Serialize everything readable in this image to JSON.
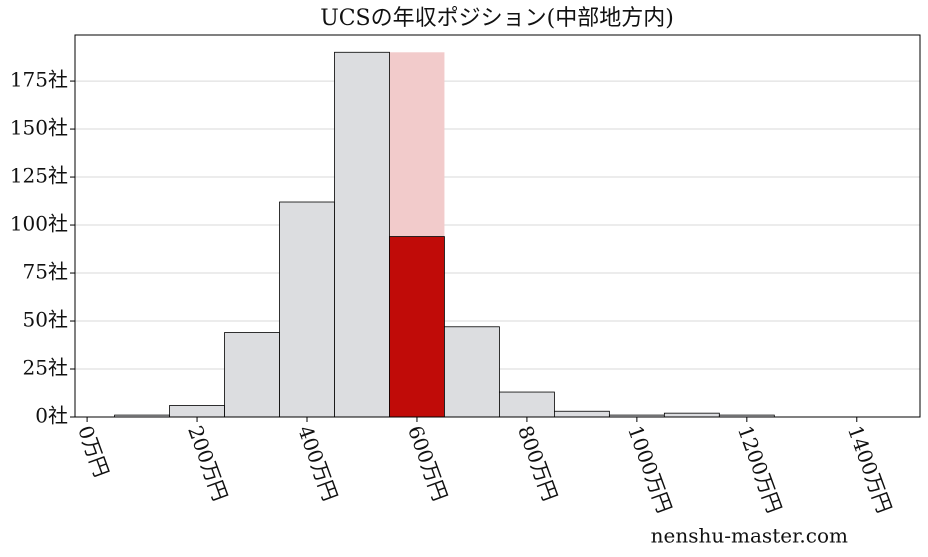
{
  "chart_data": {
    "type": "histogram",
    "title": "UCSの年収ポジション(中部地方内)",
    "bins": [
      50,
      150,
      250,
      350,
      450,
      550,
      650,
      750,
      850,
      950,
      1050,
      1150,
      1250
    ],
    "counts": [
      1,
      6,
      44,
      112,
      190,
      94,
      47,
      13,
      3,
      1,
      2,
      1
    ],
    "color": "#dcdde0",
    "highlight_index": 5,
    "highlight_color": "#c00b08",
    "highlight_band_color": "#f2cbcb",
    "xlim": [
      -22,
      1515
    ],
    "xticks": [
      {
        "value": 0,
        "label": "0万円"
      },
      {
        "value": 200,
        "label": "200万円"
      },
      {
        "value": 400,
        "label": "400万円"
      },
      {
        "value": 600,
        "label": "600万円"
      },
      {
        "value": 800,
        "label": "800万円"
      },
      {
        "value": 1000,
        "label": "1000万円"
      },
      {
        "value": 1200,
        "label": "1200万円"
      },
      {
        "value": 1400,
        "label": "1400万円"
      }
    ],
    "ylim": [
      0,
      199
    ],
    "yticks": [
      {
        "value": 0,
        "label": "0社"
      },
      {
        "value": 25,
        "label": "25社"
      },
      {
        "value": 50,
        "label": "50社"
      },
      {
        "value": 75,
        "label": "75社"
      },
      {
        "value": 100,
        "label": "100社"
      },
      {
        "value": 125,
        "label": "125社"
      },
      {
        "value": 150,
        "label": "150社"
      },
      {
        "value": 175,
        "label": "175社"
      }
    ],
    "grid": true,
    "watermark": "nenshu-master.com"
  }
}
